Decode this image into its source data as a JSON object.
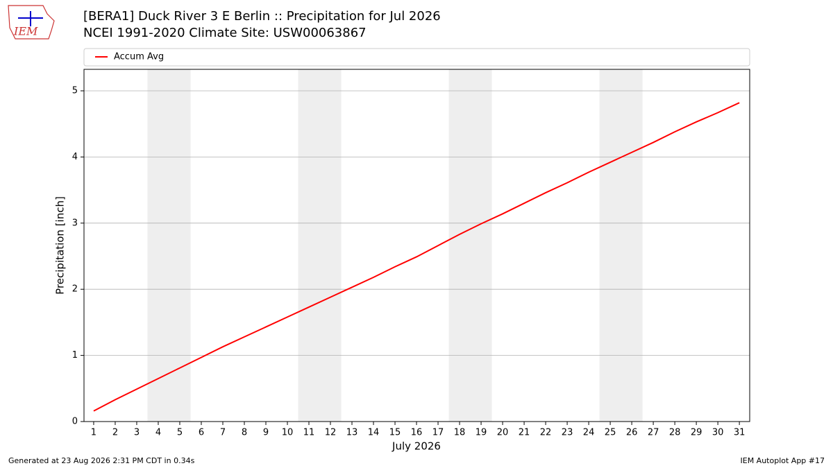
{
  "logo_text": "IEM",
  "footer": {
    "left": "Generated at 23 Aug 2026 2:31 PM CDT in 0.34s",
    "right": "IEM Autoplot App #17"
  },
  "chart_data": {
    "type": "line",
    "title": "[BERA1] Duck River 3 E Berlin :: Precipitation for Jul 2026",
    "subtitle": "NCEI 1991-2020 Climate Site: USW00063867",
    "xlabel": "July 2026",
    "ylabel": "Precipitation [inch]",
    "x": [
      1,
      2,
      3,
      4,
      5,
      6,
      7,
      8,
      9,
      10,
      11,
      12,
      13,
      14,
      15,
      16,
      17,
      18,
      19,
      20,
      21,
      22,
      23,
      24,
      25,
      26,
      27,
      28,
      29,
      30,
      31
    ],
    "series": [
      {
        "name": "Accum Avg",
        "color": "#ff0000",
        "values": [
          0.16,
          0.33,
          0.49,
          0.65,
          0.81,
          0.97,
          1.13,
          1.28,
          1.43,
          1.58,
          1.73,
          1.88,
          2.03,
          2.18,
          2.34,
          2.49,
          2.66,
          2.83,
          2.99,
          3.14,
          3.3,
          3.46,
          3.61,
          3.77,
          3.92,
          4.07,
          4.22,
          4.38,
          4.53,
          4.67,
          4.82
        ]
      }
    ],
    "shaded_spans": [
      [
        3.5,
        5.5
      ],
      [
        10.5,
        12.5
      ],
      [
        17.5,
        19.5
      ],
      [
        24.5,
        26.5
      ]
    ],
    "shade_color": "#eeeeee",
    "xlim": [
      0.55,
      31.48
    ],
    "xticks": [
      1,
      2,
      3,
      4,
      5,
      6,
      7,
      8,
      9,
      10,
      11,
      12,
      13,
      14,
      15,
      16,
      17,
      18,
      19,
      20,
      21,
      22,
      23,
      24,
      25,
      26,
      27,
      28,
      29,
      30,
      31
    ],
    "ylim": [
      0,
      5.325
    ],
    "yticks": [
      0,
      1,
      2,
      3,
      4,
      5
    ],
    "grid": true,
    "legend": "top"
  }
}
